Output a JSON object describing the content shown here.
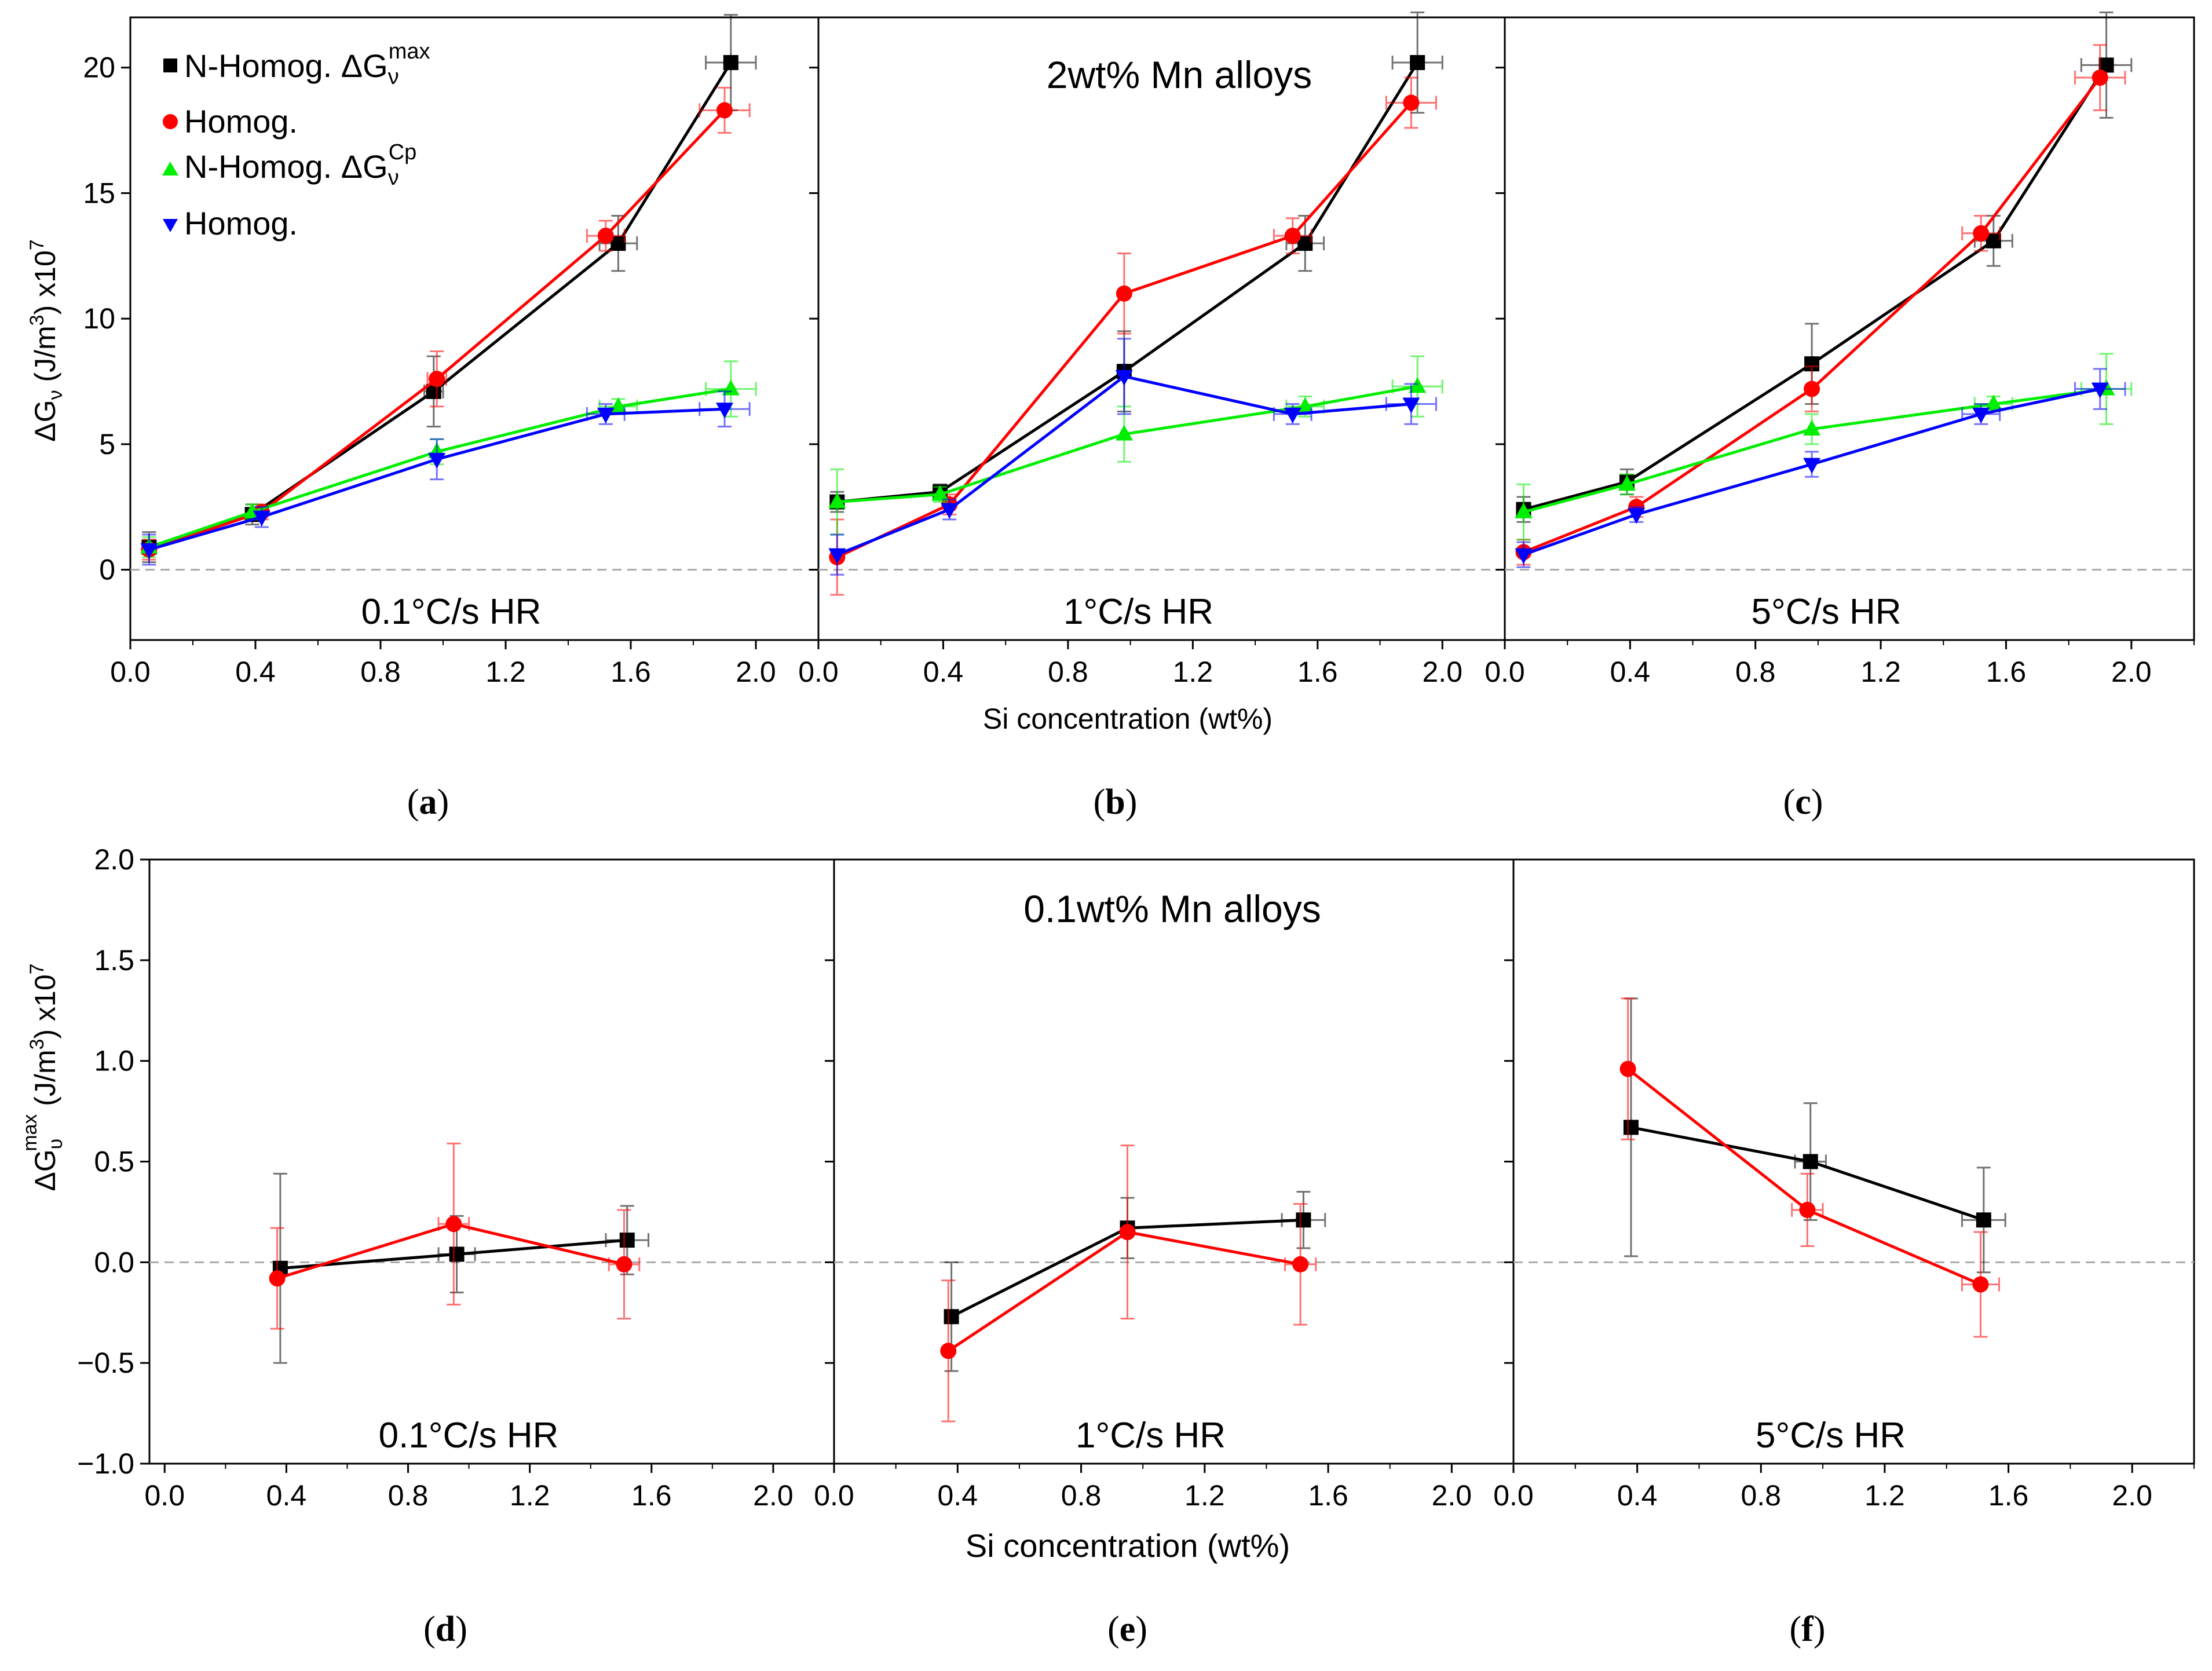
{
  "figure": {
    "top_xlabel": "Si concentration (wt%)",
    "bottom_xlabel": "Si concentration (wt%)",
    "top_ylabel": {
      "main": "ΔG",
      "sub": "ν",
      "units": " (J/m",
      "exp": "3",
      "tail": ") x10",
      "tail_exp": "7"
    },
    "bottom_ylabel": {
      "main": "ΔG",
      "sub": "υ",
      "sup": "max",
      "units": " (J/m",
      "exp": "3",
      "tail": ") x10",
      "tail_exp": "7"
    },
    "top_annotation": "2wt% Mn alloys",
    "bottom_annotation": "0.1wt% Mn alloys",
    "legend": [
      {
        "marker": "square",
        "color": "#000000",
        "label": "N-Homog. ΔG",
        "sub": "ν",
        "sup": "max"
      },
      {
        "marker": "circle",
        "color": "#ff0000",
        "label": "Homog.",
        "sub": "",
        "sup": ""
      },
      {
        "marker": "triangle-up",
        "color": "#00ee00",
        "label": "N-Homog. ΔG",
        "sub": "ν",
        "sup": "Cp"
      },
      {
        "marker": "triangle-down",
        "color": "#0000ff",
        "label": "Homog.",
        "sub": "",
        "sup": ""
      }
    ],
    "colors": {
      "black": "#000000",
      "red": "#ff0000",
      "green": "#00ee00",
      "blue": "#0000ff",
      "zero_line": "#aaaaaa"
    }
  },
  "chart_data": [
    {
      "type": "scatter",
      "panel": "a",
      "sublabel_open": "(",
      "sublabel": "a",
      "sublabel_close": ")",
      "annotation": "0.1°C/s HR",
      "xlabel": "Si concentration (wt%)",
      "ylabel": "ΔGν (J/m3) x10^7",
      "xlim": [
        0.0,
        2.2
      ],
      "ylim": [
        -2.8,
        22
      ],
      "xticks": [
        0.0,
        0.4,
        0.8,
        1.2,
        1.6,
        2.0
      ],
      "xtick_labels": [
        "0.0",
        "0.4",
        "0.8",
        "1.2",
        "1.6",
        "2.0"
      ],
      "yticks": [
        0,
        5,
        10,
        15,
        20
      ],
      "ytick_labels": [
        "0",
        "5",
        "10",
        "15",
        "20"
      ],
      "series": [
        {
          "name": "N-Homog. ΔGν max",
          "color": "#000000",
          "marker": "square",
          "x": [
            0.06,
            0.39,
            0.97,
            1.56,
            1.92
          ],
          "y": [
            0.9,
            2.2,
            7.1,
            13.0,
            20.2
          ],
          "yerr": [
            0.6,
            0.4,
            1.4,
            1.1,
            1.9
          ],
          "xerr": [
            0,
            0,
            0.03,
            0.06,
            0.08
          ]
        },
        {
          "name": "Homog.",
          "color": "#ff0000",
          "marker": "circle",
          "x": [
            0.06,
            0.42,
            0.98,
            1.52,
            1.9
          ],
          "y": [
            0.8,
            2.3,
            7.6,
            13.3,
            18.3
          ],
          "yerr": [
            0.4,
            0.3,
            1.1,
            0.6,
            0.9
          ],
          "xerr": [
            0,
            0,
            0.03,
            0.06,
            0.08
          ]
        },
        {
          "name": "N-Homog. ΔGν Cp",
          "color": "#00ee00",
          "marker": "triangle-up",
          "x": [
            0.06,
            0.39,
            0.98,
            1.56,
            1.92
          ],
          "y": [
            0.9,
            2.3,
            4.7,
            6.5,
            7.2
          ],
          "yerr": [
            0.4,
            0.3,
            0.5,
            0.3,
            1.1
          ],
          "xerr": [
            0,
            0,
            0,
            0.06,
            0.08
          ]
        },
        {
          "name": "Homog.",
          "color": "#0000ff",
          "marker": "triangle-down",
          "x": [
            0.06,
            0.42,
            0.98,
            1.52,
            1.9
          ],
          "y": [
            0.8,
            2.1,
            4.4,
            6.2,
            6.4
          ],
          "yerr": [
            0.6,
            0.4,
            0.8,
            0.4,
            0.7
          ],
          "xerr": [
            0,
            0,
            0,
            0.06,
            0.08
          ]
        }
      ]
    },
    {
      "type": "scatter",
      "panel": "b",
      "sublabel_open": "(",
      "sublabel": "b",
      "sublabel_close": ")",
      "annotation": "1°C/s HR",
      "xlabel": "Si concentration (wt%)",
      "ylabel": "ΔGν (J/m3) x10^7",
      "xlim": [
        0.0,
        2.2
      ],
      "ylim": [
        -2.8,
        22
      ],
      "xticks": [
        0.0,
        0.4,
        0.8,
        1.2,
        1.6,
        2.0
      ],
      "xtick_labels": [
        "0.0",
        "0.4",
        "0.8",
        "1.2",
        "1.6",
        "2.0"
      ],
      "yticks": [
        0,
        5,
        10,
        15,
        20
      ],
      "ytick_labels": [],
      "series": [
        {
          "name": "N-Homog. ΔGν max",
          "color": "#000000",
          "marker": "square",
          "x": [
            0.06,
            0.39,
            0.98,
            1.56,
            1.92
          ],
          "y": [
            2.7,
            3.1,
            7.9,
            13.0,
            20.2
          ],
          "yerr": [
            0.4,
            0.3,
            1.6,
            1.1,
            2.0
          ],
          "xerr": [
            0,
            0,
            0,
            0.06,
            0.08
          ]
        },
        {
          "name": "Homog.",
          "color": "#ff0000",
          "marker": "circle",
          "x": [
            0.06,
            0.42,
            0.98,
            1.52,
            1.9
          ],
          "y": [
            0.5,
            2.6,
            11.0,
            13.3,
            18.6
          ],
          "yerr": [
            1.5,
            0.4,
            1.6,
            0.7,
            1.0
          ],
          "xerr": [
            0,
            0,
            0,
            0.06,
            0.08
          ]
        },
        {
          "name": "N-Homog. ΔGν Cp",
          "color": "#00ee00",
          "marker": "triangle-up",
          "x": [
            0.06,
            0.39,
            0.98,
            1.56,
            1.92
          ],
          "y": [
            2.7,
            3.0,
            5.4,
            6.5,
            7.3
          ],
          "yerr": [
            1.3,
            0.3,
            1.1,
            0.4,
            1.2
          ],
          "xerr": [
            0,
            0,
            0,
            0.06,
            0.08
          ]
        },
        {
          "name": "Homog.",
          "color": "#0000ff",
          "marker": "triangle-down",
          "x": [
            0.06,
            0.42,
            0.98,
            1.52,
            1.9
          ],
          "y": [
            0.6,
            2.4,
            7.7,
            6.2,
            6.6
          ],
          "yerr": [
            0.8,
            0.4,
            1.5,
            0.4,
            0.8
          ],
          "xerr": [
            0,
            0,
            0,
            0.06,
            0.08
          ]
        }
      ]
    },
    {
      "type": "scatter",
      "panel": "c",
      "sublabel_open": "(",
      "sublabel": "c",
      "sublabel_close": ")",
      "annotation": "5°C/s HR",
      "xlabel": "Si concentration (wt%)",
      "ylabel": "ΔGν (J/m3) x10^7",
      "xlim": [
        0.0,
        2.2
      ],
      "ylim": [
        -2.8,
        22
      ],
      "xticks": [
        0.0,
        0.4,
        0.8,
        1.2,
        1.6,
        2.0
      ],
      "xtick_labels": [
        "0.0",
        "0.4",
        "0.8",
        "1.2",
        "1.6",
        "2.0"
      ],
      "yticks": [
        0,
        5,
        10,
        15,
        20
      ],
      "ytick_labels": [],
      "series": [
        {
          "name": "N-Homog. ΔGν max",
          "color": "#000000",
          "marker": "square",
          "x": [
            0.06,
            0.39,
            0.98,
            1.56,
            1.92
          ],
          "y": [
            2.4,
            3.5,
            8.2,
            13.1,
            20.1
          ],
          "yerr": [
            0.5,
            0.5,
            1.6,
            1.0,
            2.1
          ],
          "xerr": [
            0,
            0,
            0,
            0.06,
            0.08
          ]
        },
        {
          "name": "Homog.",
          "color": "#ff0000",
          "marker": "circle",
          "x": [
            0.06,
            0.42,
            0.98,
            1.52,
            1.9
          ],
          "y": [
            0.7,
            2.5,
            7.2,
            13.4,
            19.6
          ],
          "yerr": [
            0.5,
            0.4,
            0.9,
            0.7,
            1.3
          ],
          "xerr": [
            0,
            0,
            0,
            0.06,
            0.08
          ]
        },
        {
          "name": "N-Homog. ΔGν Cp",
          "color": "#00ee00",
          "marker": "triangle-up",
          "x": [
            0.06,
            0.39,
            0.98,
            1.56,
            1.92
          ],
          "y": [
            2.3,
            3.4,
            5.6,
            6.6,
            7.2
          ],
          "yerr": [
            1.1,
            0.4,
            0.6,
            0.3,
            1.4
          ],
          "xerr": [
            0,
            0,
            0,
            0.06,
            0.08
          ]
        },
        {
          "name": "Homog.",
          "color": "#0000ff",
          "marker": "triangle-down",
          "x": [
            0.06,
            0.42,
            0.98,
            1.52,
            1.9
          ],
          "y": [
            0.6,
            2.2,
            4.2,
            6.2,
            7.2
          ],
          "yerr": [
            0.5,
            0.3,
            0.5,
            0.4,
            0.8
          ],
          "xerr": [
            0,
            0,
            0,
            0.06,
            0.08
          ]
        }
      ]
    },
    {
      "type": "scatter",
      "panel": "d",
      "sublabel_open": "(",
      "sublabel": "d",
      "sublabel_close": ")",
      "annotation": "0.1°C/s HR",
      "xlabel": "Si concentration (wt%)",
      "ylabel": "ΔGυ max (J/m3) x10^7",
      "xlim": [
        -0.05,
        2.2
      ],
      "ylim": [
        -1.0,
        2.0
      ],
      "xticks": [
        0.0,
        0.4,
        0.8,
        1.2,
        1.6,
        2.0
      ],
      "xtick_labels": [
        "0.0",
        "0.4",
        "0.8",
        "1.2",
        "1.6",
        "2.0"
      ],
      "yticks": [
        -1.0,
        -0.5,
        0.0,
        0.5,
        1.0,
        1.5,
        2.0
      ],
      "ytick_labels": [
        "−1.0",
        "−0.5",
        "0.0",
        "0.5",
        "1.0",
        "1.5",
        "2.0"
      ],
      "series": [
        {
          "name": "N-Homog.",
          "color": "#000000",
          "marker": "square",
          "x": [
            0.38,
            0.96,
            1.52
          ],
          "y": [
            -0.03,
            0.04,
            0.11
          ],
          "yerr": [
            0.47,
            0.19,
            0.17
          ],
          "xerr": [
            0,
            0.06,
            0.07
          ]
        },
        {
          "name": "Homog.",
          "color": "#ff0000",
          "marker": "circle",
          "x": [
            0.37,
            0.95,
            1.51
          ],
          "y": [
            -0.08,
            0.19,
            -0.01
          ],
          "yerr": [
            0.25,
            0.4,
            0.27
          ],
          "xerr": [
            0,
            0.05,
            0.05
          ]
        }
      ]
    },
    {
      "type": "scatter",
      "panel": "e",
      "sublabel_open": "(",
      "sublabel": "e",
      "sublabel_close": ")",
      "annotation": "1°C/s HR",
      "xlabel": "Si concentration (wt%)",
      "ylabel": "ΔGυ max (J/m3) x10^7",
      "xlim": [
        0.0,
        2.2
      ],
      "ylim": [
        -1.0,
        2.0
      ],
      "xticks": [
        0.0,
        0.4,
        0.8,
        1.2,
        1.6,
        2.0
      ],
      "xtick_labels": [
        "0.0",
        "0.4",
        "0.8",
        "1.2",
        "1.6",
        "2.0"
      ],
      "yticks": [
        -1.0,
        -0.5,
        0.0,
        0.5,
        1.0,
        1.5,
        2.0
      ],
      "ytick_labels": [],
      "series": [
        {
          "name": "N-Homog.",
          "color": "#000000",
          "marker": "square",
          "x": [
            0.38,
            0.95,
            1.52
          ],
          "y": [
            -0.27,
            0.17,
            0.21
          ],
          "yerr": [
            0.27,
            0.15,
            0.14
          ],
          "xerr": [
            0,
            0,
            0.07
          ]
        },
        {
          "name": "Homog.",
          "color": "#ff0000",
          "marker": "circle",
          "x": [
            0.37,
            0.95,
            1.51
          ],
          "y": [
            -0.44,
            0.15,
            -0.01
          ],
          "yerr": [
            0.35,
            0.43,
            0.3
          ],
          "xerr": [
            0,
            0,
            0.05
          ]
        }
      ]
    },
    {
      "type": "scatter",
      "panel": "f",
      "sublabel_open": "(",
      "sublabel": "f",
      "sublabel_close": ")",
      "annotation": "5°C/s HR",
      "xlabel": "Si concentration (wt%)",
      "ylabel": "ΔGυ max (J/m3) x10^7",
      "xlim": [
        0.0,
        2.2
      ],
      "ylim": [
        -1.0,
        2.0
      ],
      "xticks": [
        0.0,
        0.4,
        0.8,
        1.2,
        1.6,
        2.0
      ],
      "xtick_labels": [
        "0.0",
        "0.4",
        "0.8",
        "1.2",
        "1.6",
        "2.0"
      ],
      "yticks": [
        -1.0,
        -0.5,
        0.0,
        0.5,
        1.0,
        1.5,
        2.0
      ],
      "ytick_labels": [],
      "series": [
        {
          "name": "N-Homog.",
          "color": "#000000",
          "marker": "square",
          "x": [
            0.38,
            0.96,
            1.52
          ],
          "y": [
            0.67,
            0.5,
            0.21
          ],
          "yerr": [
            0.64,
            0.29,
            0.26
          ],
          "xerr": [
            0,
            0.05,
            0.07
          ]
        },
        {
          "name": "Homog.",
          "color": "#ff0000",
          "marker": "circle",
          "x": [
            0.37,
            0.95,
            1.51
          ],
          "y": [
            0.96,
            0.26,
            -0.11
          ],
          "yerr": [
            0.35,
            0.18,
            0.26
          ],
          "xerr": [
            0,
            0.05,
            0.06
          ]
        }
      ]
    }
  ]
}
